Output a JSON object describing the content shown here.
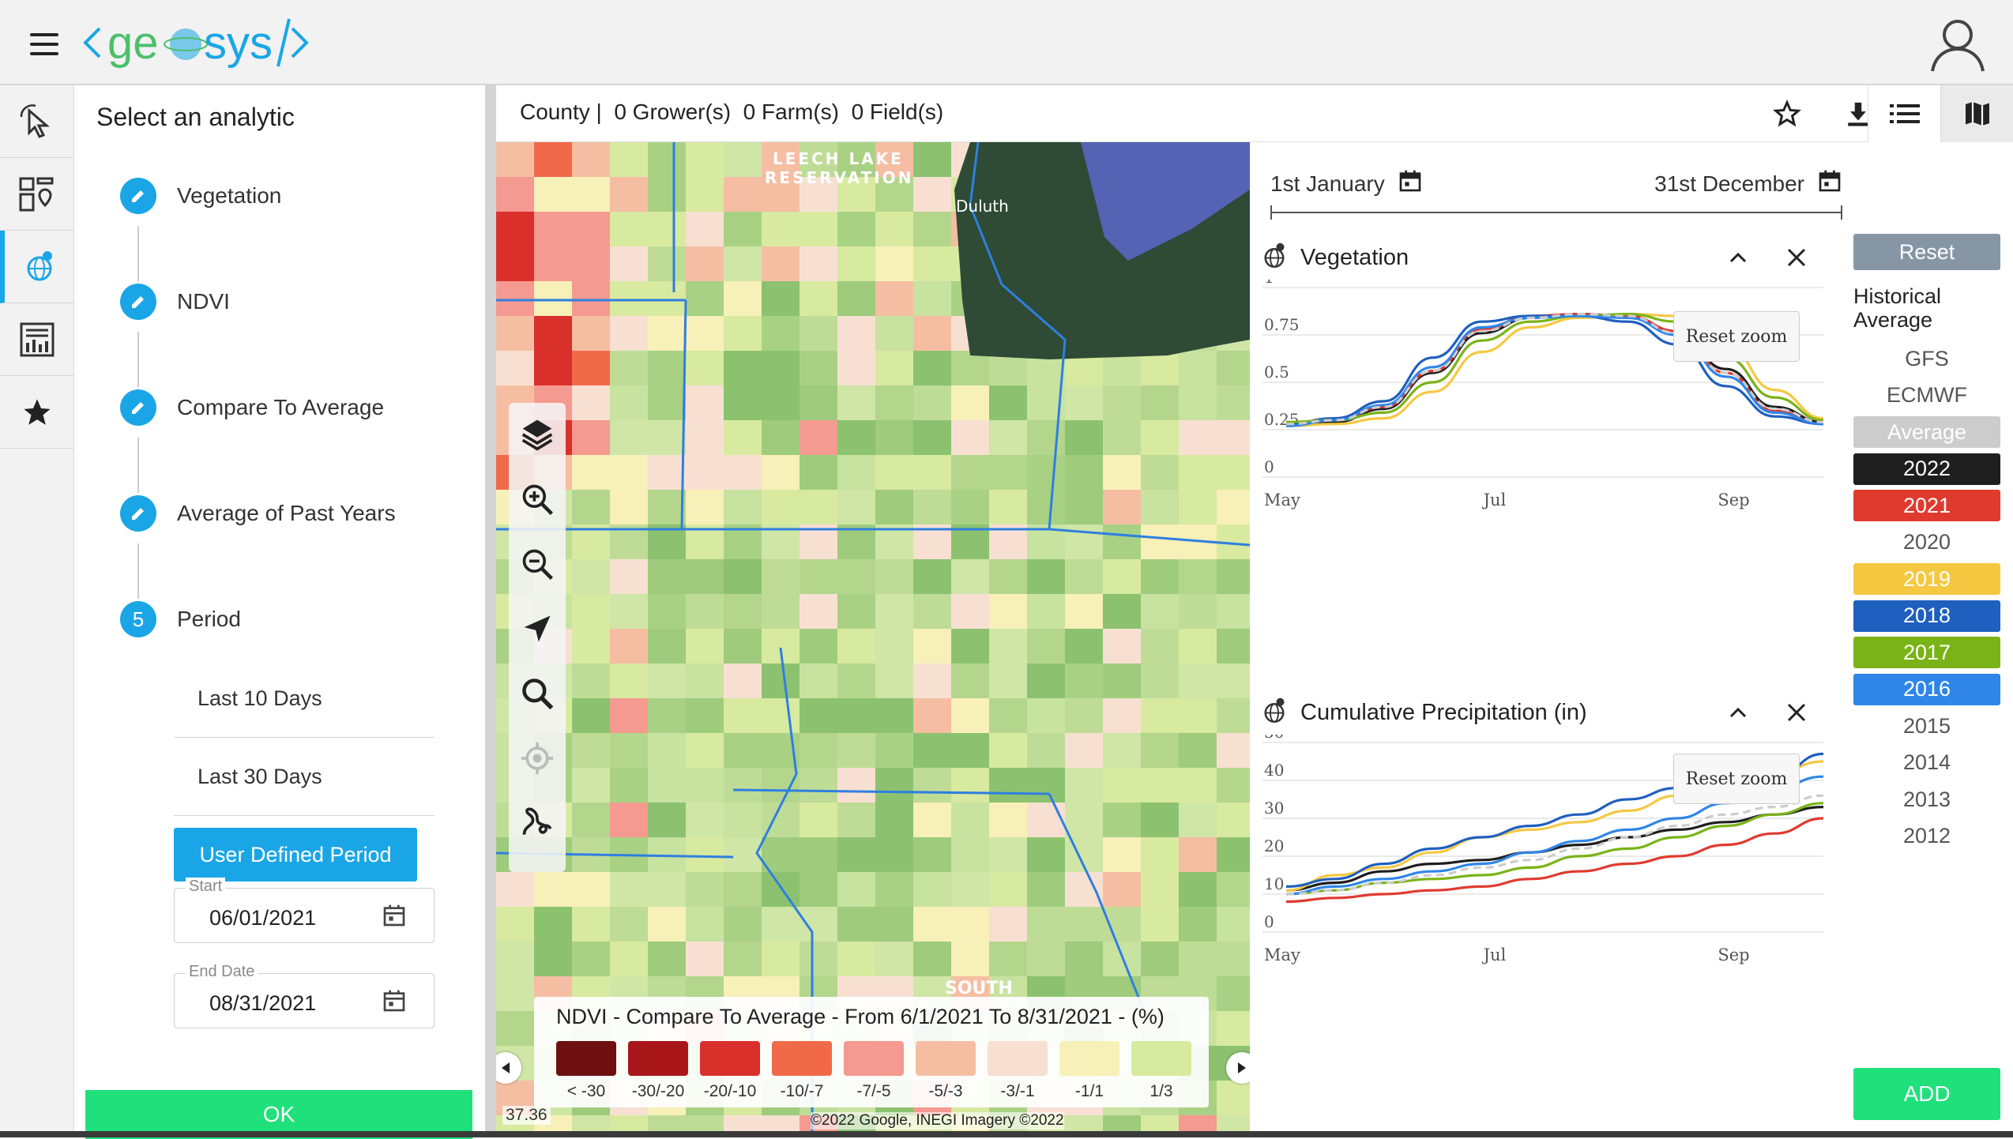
{
  "app": {
    "logo_text": "<geosys/>"
  },
  "header": {
    "menu_icon": "hamburger-icon",
    "user_icon": "user-icon"
  },
  "rail": {
    "items": [
      {
        "icon": "pointer-select-icon",
        "active": false
      },
      {
        "icon": "dashboard-map-icon",
        "active": false
      },
      {
        "icon": "globe-analytics-icon",
        "active": true
      },
      {
        "icon": "report-table-icon",
        "active": false
      },
      {
        "icon": "star-icon",
        "active": false
      }
    ]
  },
  "analytic_panel": {
    "title": "Select an analytic",
    "steps": [
      {
        "marker": "",
        "label": "Vegetation"
      },
      {
        "marker": "",
        "label": "NDVI"
      },
      {
        "marker": "",
        "label": "Compare To Average"
      },
      {
        "marker": "",
        "label": "Average of Past Years"
      },
      {
        "marker": "5",
        "label": "Period"
      }
    ],
    "period_options": [
      "Last 10 Days",
      "Last 30 Days"
    ],
    "selected_option": "User Defined Period",
    "start": {
      "label": "Start",
      "value": "06/01/2021"
    },
    "end": {
      "label": "End Date",
      "value": "08/31/2021"
    },
    "ok_label": "OK"
  },
  "toolbar": {
    "summary": "County |  0 Grower(s)  0 Farm(s)  0 Field(s)",
    "icons": [
      "star-outline-icon",
      "download-icon",
      "list-view-icon",
      "map-view-icon"
    ]
  },
  "map": {
    "place_labels": [
      "LEECH LAKE",
      "RESERVATION",
      "Duluth",
      "SOUTH"
    ],
    "tools": [
      "layers-icon",
      "zoom-in-icon",
      "zoom-out-icon",
      "navigate-icon",
      "search-icon",
      "locate-icon",
      "draw-icon"
    ],
    "legend": {
      "title": "NDVI - Compare To Average - From 6/1/2021 To 8/31/2021 - (%)",
      "classes": [
        {
          "label": "< -30",
          "color": "#6e1010"
        },
        {
          "label": "-30/-20",
          "color": "#a8161a"
        },
        {
          "label": "-20/-10",
          "color": "#d9302c"
        },
        {
          "label": "-10/-7",
          "color": "#f06a4a"
        },
        {
          "label": "-7/-5",
          "color": "#f49a90"
        },
        {
          "label": "-5/-3",
          "color": "#f5bea3"
        },
        {
          "label": "-3/-1",
          "color": "#f7e0d2"
        },
        {
          "label": "-1/1",
          "color": "#f7f0b8"
        },
        {
          "label": "1/3",
          "color": "#d8eaa0"
        }
      ]
    },
    "coords": "37.36",
    "copyright": "©2022 Google, INEGI Imagery ©2022"
  },
  "date_range": {
    "start": "1st January",
    "end": "31st December"
  },
  "charts_panel": {
    "reset_zoom": "Reset zoom",
    "year_panel": {
      "reset": "Reset",
      "heading": "Historical Average",
      "items": [
        {
          "label": "GFS",
          "bg": "",
          "fg": "#555555"
        },
        {
          "label": "ECMWF",
          "bg": "",
          "fg": "#555555"
        },
        {
          "label": "Average",
          "bg": "#cccccc",
          "fg": "#ffffff"
        },
        {
          "label": "2022",
          "bg": "#1e1e1e",
          "fg": "#ffffff"
        },
        {
          "label": "2021",
          "bg": "#e03a2f",
          "fg": "#ffffff"
        },
        {
          "label": "2020",
          "bg": "",
          "fg": "#555555"
        },
        {
          "label": "2019",
          "bg": "#f5c842",
          "fg": "#ffffff"
        },
        {
          "label": "2018",
          "bg": "#1f5fbf",
          "fg": "#ffffff"
        },
        {
          "label": "2017",
          "bg": "#7ab317",
          "fg": "#ffffff"
        },
        {
          "label": "2016",
          "bg": "#2f86e8",
          "fg": "#ffffff"
        },
        {
          "label": "2015",
          "bg": "",
          "fg": "#555555"
        },
        {
          "label": "2014",
          "bg": "",
          "fg": "#555555"
        },
        {
          "label": "2013",
          "bg": "",
          "fg": "#555555"
        },
        {
          "label": "2012",
          "bg": "",
          "fg": "#555555"
        }
      ],
      "add": "ADD"
    }
  },
  "chart_data": [
    {
      "type": "line",
      "title": "Vegetation",
      "xlabel": "",
      "ylabel": "",
      "x_ticks": [
        "May",
        "Jul",
        "Sep"
      ],
      "y_ticks": [
        "0",
        "0.25",
        "0.5",
        "0.75",
        "1"
      ],
      "ylim": [
        0,
        1
      ],
      "x": [
        "May 1",
        "May 16",
        "Jun 1",
        "Jun 16",
        "Jul 1",
        "Jul 16",
        "Aug 1",
        "Aug 16",
        "Sep 1",
        "Sep 16",
        "Oct 1",
        "Oct 16"
      ],
      "grid": true,
      "legend": "none",
      "series": [
        {
          "name": "2022",
          "color": "#1e1e1e",
          "values": [
            0.27,
            0.29,
            0.36,
            0.55,
            0.76,
            0.84,
            0.86,
            0.85,
            0.77,
            0.57,
            0.37,
            0.29
          ]
        },
        {
          "name": "2021",
          "color": "#e03a2f",
          "values": [
            0.28,
            0.3,
            0.37,
            0.56,
            0.78,
            0.85,
            0.86,
            0.85,
            0.77,
            0.55,
            0.35,
            0.28
          ]
        },
        {
          "name": "2019",
          "color": "#f5c842",
          "values": [
            0.27,
            0.28,
            0.31,
            0.45,
            0.66,
            0.79,
            0.84,
            0.86,
            0.85,
            0.7,
            0.46,
            0.31
          ]
        },
        {
          "name": "2018",
          "color": "#1f5fbf",
          "values": [
            0.28,
            0.31,
            0.4,
            0.63,
            0.82,
            0.85,
            0.85,
            0.82,
            0.7,
            0.48,
            0.32,
            0.28
          ]
        },
        {
          "name": "2017",
          "color": "#7ab317",
          "values": [
            0.29,
            0.3,
            0.34,
            0.5,
            0.72,
            0.82,
            0.85,
            0.86,
            0.82,
            0.63,
            0.42,
            0.3
          ]
        },
        {
          "name": "2016",
          "color": "#2f86e8",
          "values": [
            0.27,
            0.3,
            0.38,
            0.58,
            0.79,
            0.84,
            0.85,
            0.84,
            0.75,
            0.53,
            0.34,
            0.28
          ]
        },
        {
          "name": "Average",
          "color": "#cccccc",
          "dashed": true,
          "values": [
            0.28,
            0.3,
            0.37,
            0.56,
            0.77,
            0.84,
            0.86,
            0.85,
            0.76,
            0.55,
            0.36,
            0.29
          ]
        }
      ]
    },
    {
      "type": "line",
      "title": "Cumulative Precipitation (in)",
      "xlabel": "",
      "ylabel": "",
      "x_ticks": [
        "May",
        "Jul",
        "Sep"
      ],
      "y_ticks": [
        "0",
        "10",
        "20",
        "30",
        "40",
        "50"
      ],
      "ylim": [
        0,
        50
      ],
      "x": [
        "May 1",
        "May 16",
        "Jun 1",
        "Jun 16",
        "Jul 1",
        "Jul 16",
        "Aug 1",
        "Aug 16",
        "Sep 1",
        "Sep 16",
        "Oct 1",
        "Oct 16"
      ],
      "grid": true,
      "legend": "none",
      "series": [
        {
          "name": "2022",
          "color": "#1e1e1e",
          "values": [
            11,
            13,
            16,
            18,
            19,
            21,
            23,
            25,
            27,
            29,
            31,
            33
          ]
        },
        {
          "name": "2021",
          "color": "#e03a2f",
          "values": [
            8,
            9,
            10,
            11,
            12,
            14,
            16,
            18,
            20,
            23,
            26,
            30
          ]
        },
        {
          "name": "2019",
          "color": "#f5c842",
          "values": [
            11,
            15,
            17,
            21,
            25,
            27,
            29,
            32,
            36,
            40,
            42,
            45
          ]
        },
        {
          "name": "2018",
          "color": "#1f5fbf",
          "values": [
            12,
            14,
            18,
            22,
            25,
            28,
            31,
            35,
            38,
            41,
            41,
            47
          ]
        },
        {
          "name": "2017",
          "color": "#7ab317",
          "values": [
            10,
            11,
            13,
            14,
            15,
            17,
            20,
            22,
            25,
            28,
            31,
            34
          ]
        },
        {
          "name": "2016",
          "color": "#2f86e8",
          "values": [
            10,
            12,
            14,
            16,
            18,
            21,
            24,
            27,
            30,
            34,
            38,
            41
          ]
        },
        {
          "name": "Average",
          "color": "#cccccc",
          "dashed": true,
          "values": [
            10,
            11,
            13,
            15,
            17,
            19,
            22,
            25,
            28,
            31,
            33,
            36
          ]
        }
      ]
    }
  ]
}
